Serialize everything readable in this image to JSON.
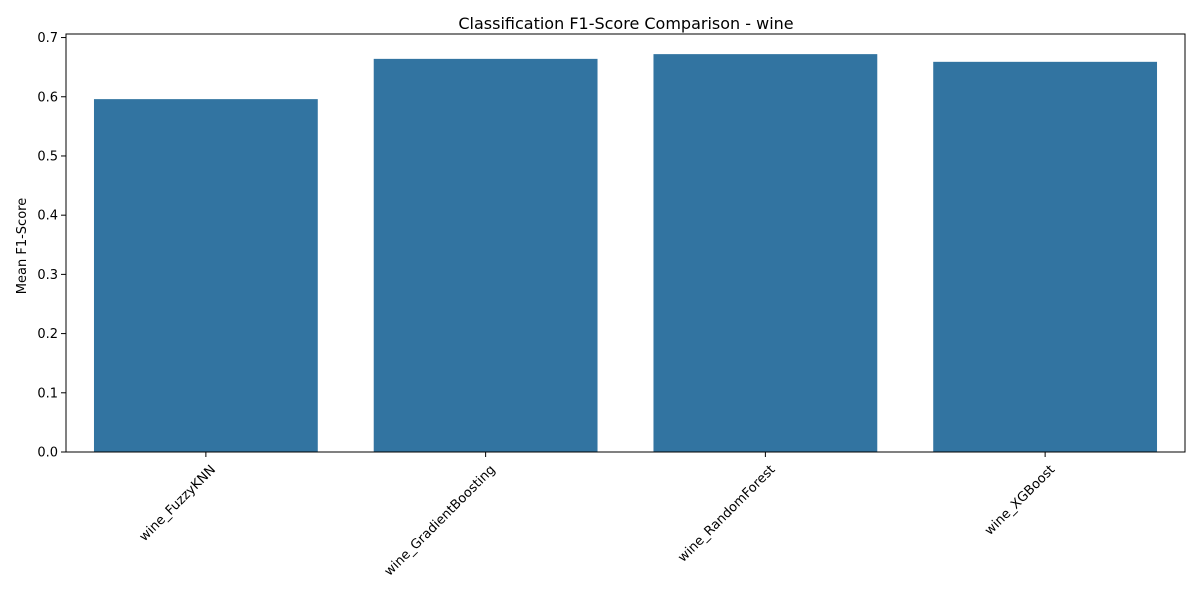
{
  "chart_data": {
    "type": "bar",
    "title": "Classification F1-Score Comparison - wine",
    "xlabel": "",
    "ylabel": "Mean F1-Score",
    "categories": [
      "wine_FuzzyKNN",
      "wine_GradientBoosting",
      "wine_RandomForest",
      "wine_XGBoost"
    ],
    "values": [
      0.596,
      0.664,
      0.672,
      0.659
    ],
    "ylim": [
      0,
      0.706
    ],
    "yticks": [
      0.0,
      0.1,
      0.2,
      0.3,
      0.4,
      0.5,
      0.6,
      0.7
    ],
    "ytick_labels": [
      "0.0",
      "0.1",
      "0.2",
      "0.3",
      "0.4",
      "0.5",
      "0.6",
      "0.7"
    ],
    "xtick_rotation": 45,
    "grid": false,
    "legend": false,
    "bar_color": "#3274a1"
  }
}
